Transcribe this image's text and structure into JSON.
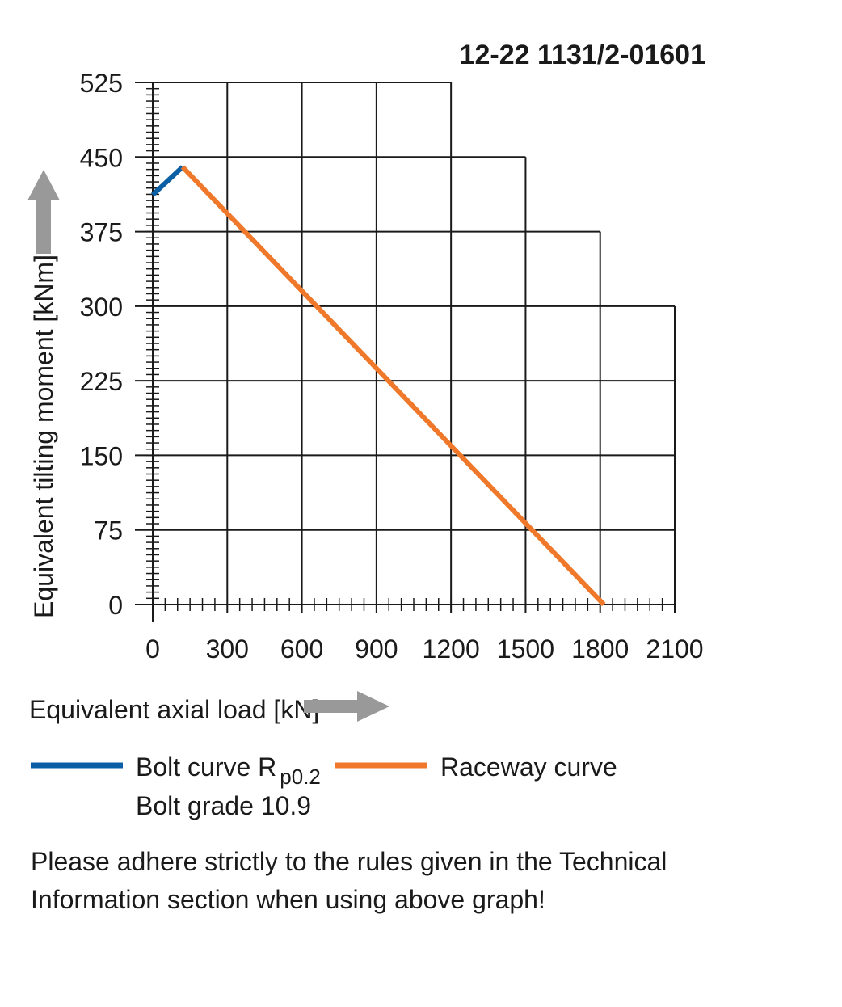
{
  "chart_data": {
    "type": "line",
    "title": "12-22 1131/2-01601",
    "xlabel": "Equivalent axial load [kN]",
    "ylabel": "Equivalent tilting moment [kNm]",
    "xlim": [
      0,
      2100
    ],
    "ylim": [
      0,
      525
    ],
    "x_ticks": [
      0,
      300,
      600,
      900,
      1200,
      1500,
      1800,
      2100
    ],
    "y_ticks": [
      0,
      75,
      150,
      225,
      300,
      375,
      450,
      525
    ],
    "x_tick_labels": [
      "0",
      "300",
      "600",
      "900",
      "1200",
      "1500",
      "1800",
      "2100"
    ],
    "y_tick_labels": [
      "0",
      "75",
      "150",
      "225",
      "300",
      "375",
      "450",
      "525"
    ],
    "grid": true,
    "grid_extent": [
      {
        "x_max": 1200,
        "y": 525
      },
      {
        "x_max": 1500,
        "y": 450
      },
      {
        "x_max": 1800,
        "y": 375
      },
      {
        "x_max": 2100,
        "y": 300
      },
      {
        "x_max": 2100,
        "y": 225
      },
      {
        "x_max": 2100,
        "y": 150
      },
      {
        "x_max": 2100,
        "y": 75
      },
      {
        "x_max": 2100,
        "y": 0
      }
    ],
    "series": [
      {
        "name": "Bolt curve R p0.2",
        "color": "#0b5fa5",
        "x": [
          0,
          120
        ],
        "y": [
          412,
          440
        ]
      },
      {
        "name": "Raceway curve",
        "color": "#f0782a",
        "x": [
          120,
          1815
        ],
        "y": [
          440,
          0
        ]
      }
    ],
    "legend": {
      "placement": "bottom",
      "bolt_label": "Bolt curve  R",
      "bolt_subscript": "p0.2",
      "bolt_grade": "Bolt grade 10.9",
      "raceway_label": "Raceway curve"
    },
    "note_lines": [
      "Please adhere strictly to the rules given in the Technical",
      "Information section when using above graph!"
    ],
    "arrow_color": "#999999"
  }
}
